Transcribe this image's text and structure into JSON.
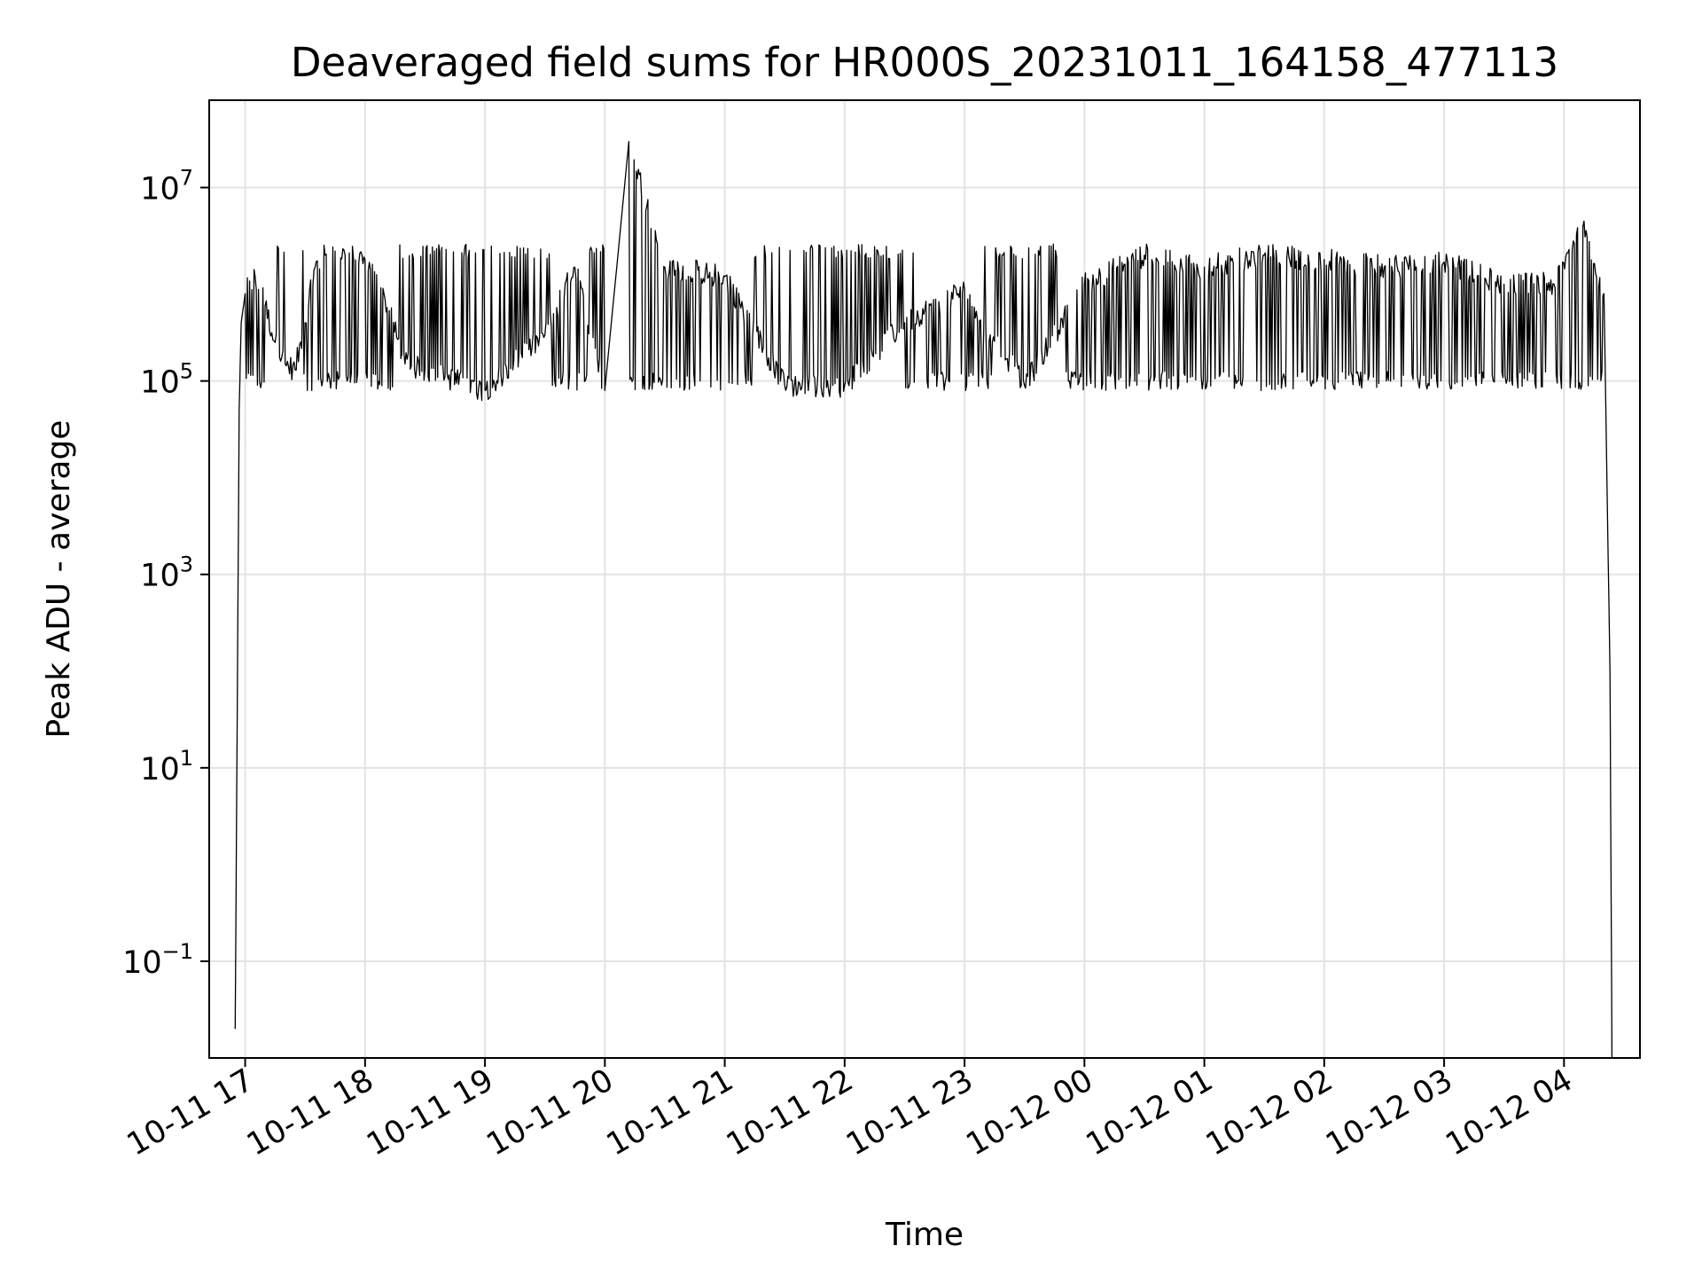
{
  "chart_data": {
    "type": "line",
    "title": "Deaveraged field sums for HR000S_20231011_164158_477113",
    "xlabel": "Time",
    "ylabel": "Peak ADU - average",
    "yscale": "log",
    "grid": true,
    "line_color": "#000000",
    "xlim": [
      "2023-10-11 16:42",
      "2023-10-12 04:38"
    ],
    "ylim": [
      0.01,
      80000000
    ],
    "x_tick_labels": [
      "10-11 17",
      "10-11 18",
      "10-11 19",
      "10-11 20",
      "10-11 21",
      "10-11 22",
      "10-11 23",
      "10-12 00",
      "10-12 01",
      "10-12 02",
      "10-12 03",
      "10-12 04"
    ],
    "y_ticks": [
      {
        "value": 0.1,
        "base": "10",
        "exp": "−1"
      },
      {
        "value": 10,
        "base": "10",
        "exp": "1"
      },
      {
        "value": 1000,
        "base": "10",
        "exp": "3"
      },
      {
        "value": 100000,
        "base": "10",
        "exp": "5"
      },
      {
        "value": 10000000,
        "base": "10",
        "exp": "7"
      }
    ],
    "series": [
      {
        "x": [
          "2023-10-11 16:55",
          "2023-10-11 16:57",
          "2023-10-11 16:58",
          "2023-10-11 17:00",
          "2023-10-11 17:05",
          "2023-10-11 17:10",
          "2023-10-11 17:15",
          "2023-10-11 17:20",
          "2023-10-11 17:25",
          "2023-10-11 17:30",
          "2023-10-11 17:35",
          "2023-10-11 17:40",
          "2023-10-11 17:45",
          "2023-10-11 17:50",
          "2023-10-11 18:00",
          "2023-10-11 18:10",
          "2023-10-11 18:20",
          "2023-10-11 18:40",
          "2023-10-11 19:00",
          "2023-10-11 19:30",
          "2023-10-11 19:45",
          "2023-10-11 20:00",
          "2023-10-11 20:12",
          "2023-10-11 20:30",
          "2023-10-11 21:00",
          "2023-10-11 21:30",
          "2023-10-11 22:00",
          "2023-10-11 22:30",
          "2023-10-11 23:00",
          "2023-10-11 23:30",
          "2023-10-12 00:00",
          "2023-10-12 00:30",
          "2023-10-12 01:00",
          "2023-10-12 01:30",
          "2023-10-12 02:00",
          "2023-10-12 02:30",
          "2023-10-12 03:00",
          "2023-10-12 03:30",
          "2023-10-12 03:55",
          "2023-10-12 04:10",
          "2023-10-12 04:20",
          "2023-10-12 04:23",
          "2023-10-12 04:24"
        ],
        "values": [
          0.02,
          50000,
          400000,
          800000,
          1200000,
          600000,
          250000,
          150000,
          130000,
          400000,
          1500000,
          2000000,
          2200000,
          2000000,
          1800000,
          700000,
          150000,
          110000,
          80000,
          300000,
          1500000,
          80000,
          30000000,
          1500000,
          1200000,
          90000,
          90000,
          400000,
          900000,
          90000,
          1000000,
          2000000,
          1500000,
          2000000,
          1800000,
          1500000,
          1700000,
          1000000,
          1000000,
          4500000,
          800000,
          100,
          0.01
        ]
      }
    ]
  }
}
